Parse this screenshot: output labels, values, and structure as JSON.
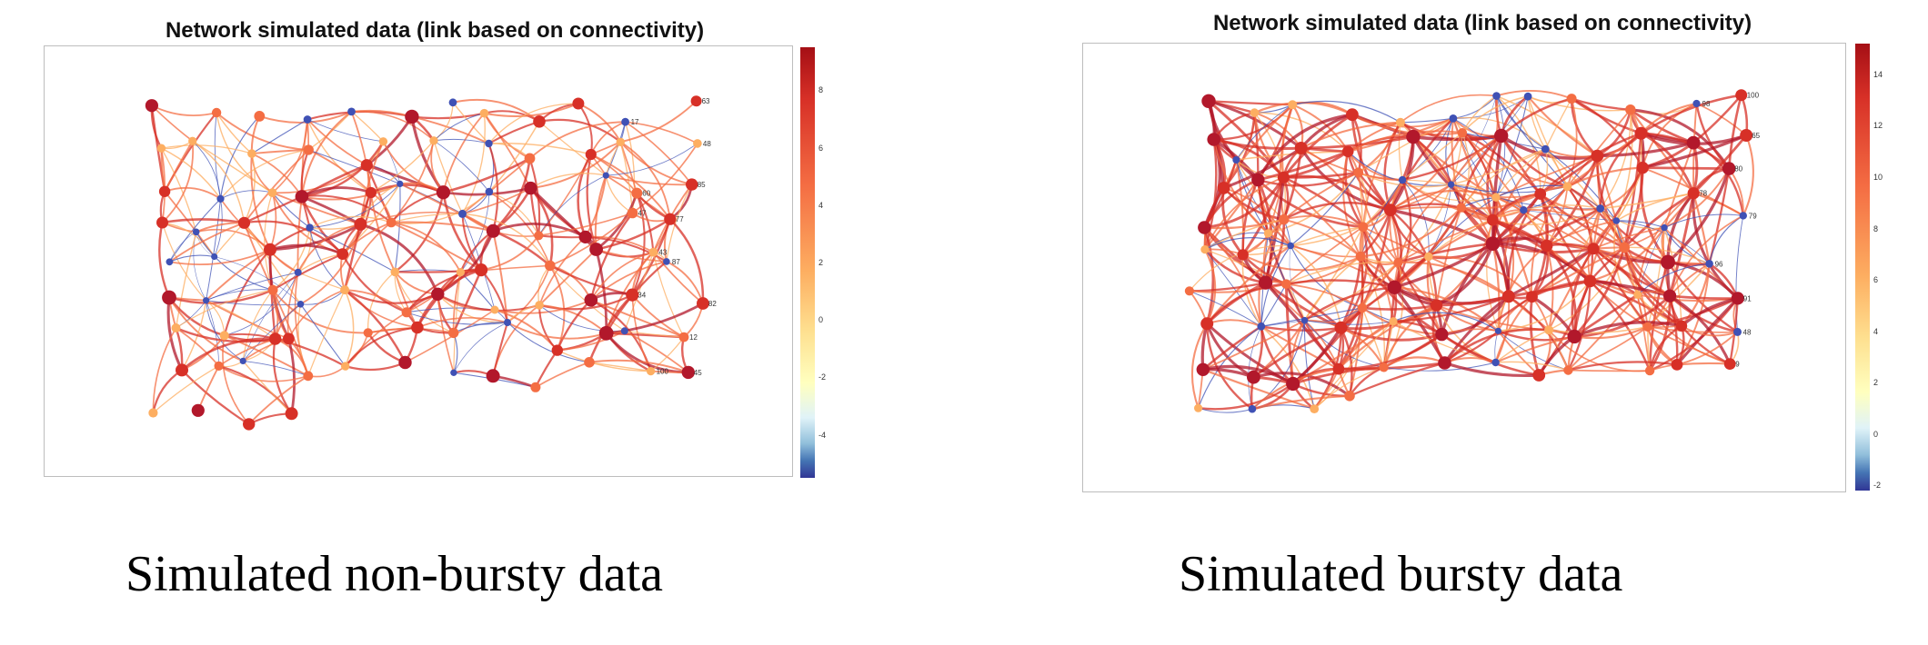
{
  "panels": [
    {
      "id": "non-bursty",
      "title": "Network simulated data (link based on connectivity)",
      "caption": "Simulated non-bursty data",
      "colorbar_ticks": [
        "8",
        "6",
        "4",
        "2",
        "0",
        "-2",
        "-4"
      ],
      "colorbar_range": [
        -5.5,
        9.5
      ],
      "node_count": 100,
      "visible_node_labels": [
        "63",
        "17",
        "48",
        "85",
        "60",
        "47",
        "77",
        "43",
        "87",
        "34",
        "82",
        "12",
        "100",
        "45"
      ]
    },
    {
      "id": "bursty",
      "title": "Network simulated data (link based on connectivity)",
      "caption": "Simulated bursty data",
      "colorbar_ticks": [
        "14",
        "12",
        "10",
        "8",
        "6",
        "4",
        "2",
        "0",
        "-2"
      ],
      "colorbar_range": [
        -2.2,
        15.2
      ],
      "node_count": 100,
      "visible_node_labels": [
        "100",
        "98",
        "65",
        "80",
        "78",
        "79",
        "96",
        "91",
        "48",
        "9"
      ]
    }
  ],
  "colors": {
    "high": "#b2182b",
    "mid_high": "#e7553c",
    "mid": "#f4a460",
    "low": "#2c3e9e",
    "colorbar_top": "#a50f15",
    "colorbar_bottom": "#313695"
  }
}
